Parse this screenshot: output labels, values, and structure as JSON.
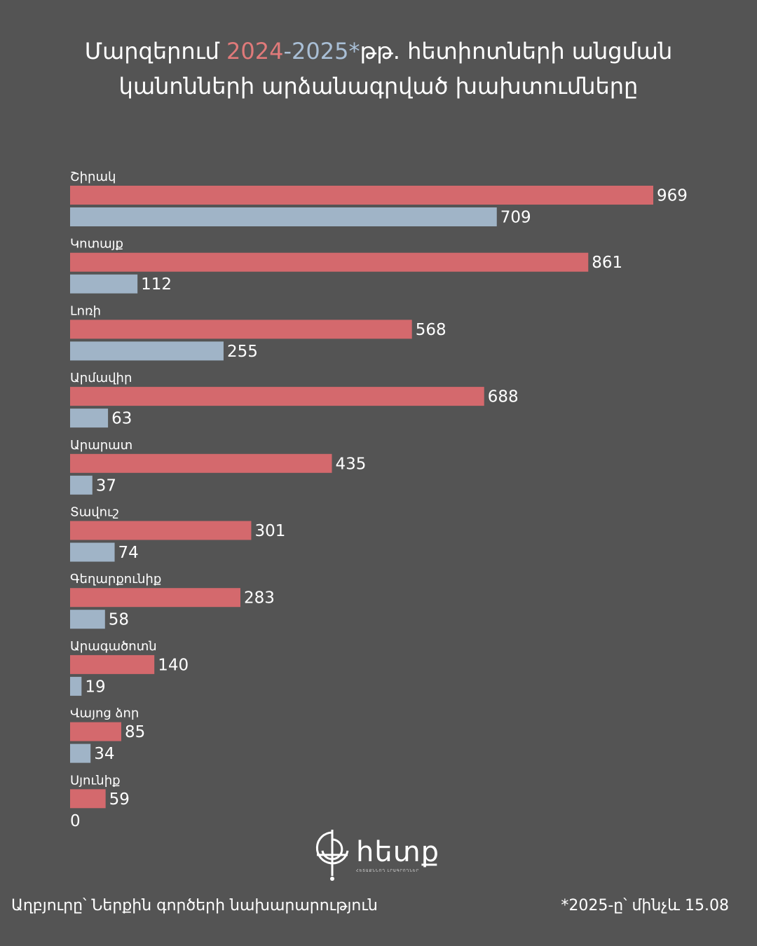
{
  "title": {
    "prefix": "Մարզերում ",
    "year1": "2024",
    "dash": "-",
    "year2": "2025*",
    "rest": "թթ. հետիոտների անցման",
    "line2": "կանոնների արձանագրված խախտումները"
  },
  "colors": {
    "background": "#545454",
    "series_2024": "#d4696d",
    "series_2025": "#a0b4c7",
    "text": "#ffffff"
  },
  "chart_data": {
    "type": "bar",
    "orientation": "horizontal",
    "categories": [
      "Շիրակ",
      "Կոտայք",
      "Լոռի",
      "Արմավիր",
      "Արարատ",
      "Տավուշ",
      "Գեղարքունիք",
      "Արագածոտն",
      "Վայոց ձոր",
      "Սյունիք"
    ],
    "series": [
      {
        "name": "2024",
        "values": [
          969,
          861,
          568,
          688,
          435,
          301,
          283,
          140,
          85,
          59
        ]
      },
      {
        "name": "2025*",
        "values": [
          709,
          112,
          255,
          63,
          37,
          74,
          58,
          19,
          34,
          0
        ]
      }
    ],
    "xlim": [
      0,
      969
    ],
    "grid": false,
    "data_labels": true
  },
  "logo": {
    "icon": "hetq-logo-icon",
    "word": "հետք",
    "subtitle": "ՀԵՏԱՔՆՆՈՂ ԼՐԱԳՐՈՂՆԵՐ"
  },
  "footer": {
    "source": "Աղբյուրը՝ Ներքին գործերի նախարարություն",
    "note": "*2025-ը՝ մինչև 15.08"
  }
}
